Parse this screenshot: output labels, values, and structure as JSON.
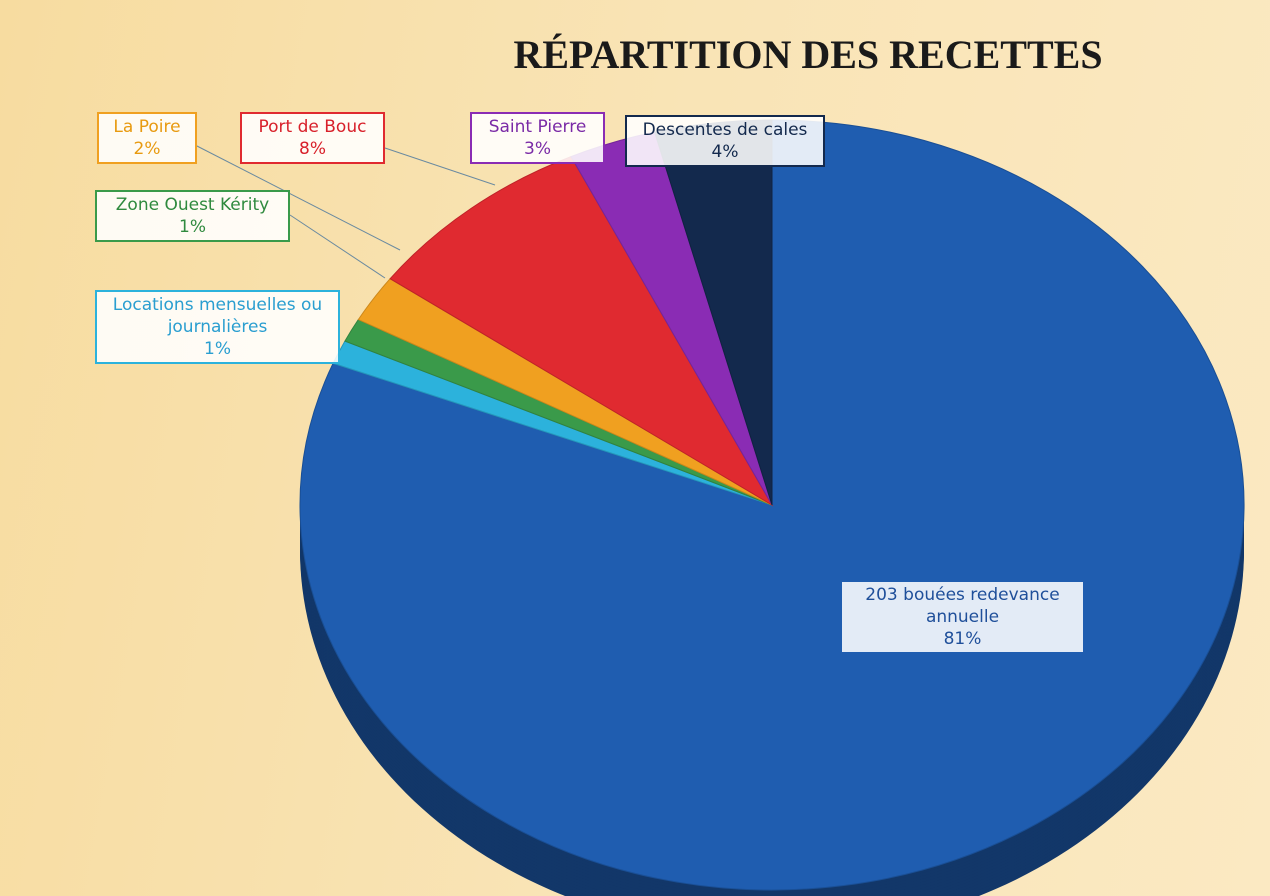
{
  "chart_data": {
    "type": "pie",
    "title": "RÉPARTITION DES RECETTES",
    "categories": [
      "203 bouées redevance annuelle",
      "Locations mensuelles ou journalières",
      "Zone Ouest Kérity",
      "La Poire",
      "Port de Bouc",
      "Saint Pierre",
      "Descentes de cales"
    ],
    "values": [
      81,
      1,
      1,
      2,
      8,
      3,
      4
    ],
    "value_labels": [
      "81%",
      "1%",
      "1%",
      "2%",
      "8%",
      "3%",
      "4%"
    ],
    "colors": [
      "#1f5db0",
      "#2cb2dc",
      "#3a9a4a",
      "#f0a020",
      "#e02a30",
      "#8a2cb4",
      "#13294d"
    ]
  }
}
